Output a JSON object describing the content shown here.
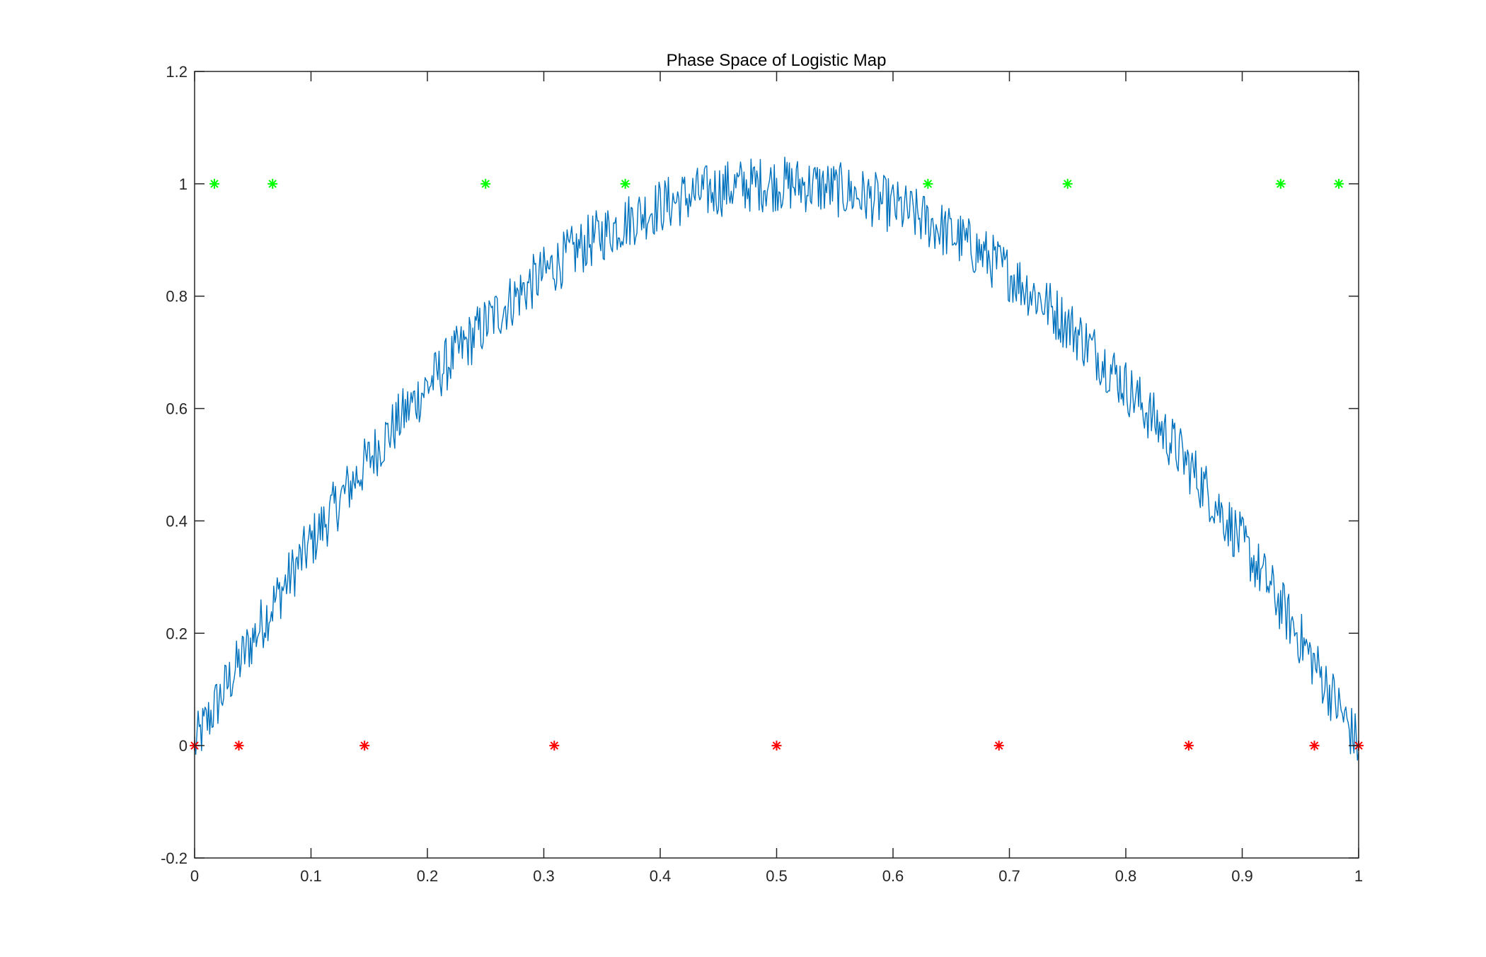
{
  "chart_data": {
    "type": "scatter",
    "title": "Phase Space of Logistic Map",
    "xlabel": "",
    "ylabel": "",
    "xlim": [
      0,
      1
    ],
    "ylim": [
      -0.2,
      1.2
    ],
    "xticks": [
      "0",
      "0.1",
      "0.2",
      "0.3",
      "0.4",
      "0.5",
      "0.6",
      "0.7",
      "0.8",
      "0.9",
      "1"
    ],
    "yticks": [
      "-0.2",
      "0",
      "0.2",
      "0.4",
      "0.6",
      "0.8",
      "1",
      "1.2"
    ],
    "grid": false,
    "legend": "none",
    "series": [
      {
        "style": "line",
        "color": "#0072BD",
        "underlying_function": "4*x*(1-x) with additive noise",
        "noise_amplitude": 0.05,
        "x_range": [
          0,
          1
        ],
        "sample_count": 1000
      },
      {
        "style": "markers",
        "marker": "asterisk",
        "color": "#00FF00",
        "points": [
          {
            "x": 0.017,
            "y": 1
          },
          {
            "x": 0.067,
            "y": 1
          },
          {
            "x": 0.25,
            "y": 1
          },
          {
            "x": 0.37,
            "y": 1
          },
          {
            "x": 0.63,
            "y": 1
          },
          {
            "x": 0.75,
            "y": 1
          },
          {
            "x": 0.933,
            "y": 1
          },
          {
            "x": 0.983,
            "y": 1
          }
        ]
      },
      {
        "style": "markers",
        "marker": "asterisk",
        "color": "#FF0000",
        "points": [
          {
            "x": 0,
            "y": 0
          },
          {
            "x": 0.038,
            "y": 0
          },
          {
            "x": 0.146,
            "y": 0
          },
          {
            "x": 0.309,
            "y": 0
          },
          {
            "x": 0.5,
            "y": 0
          },
          {
            "x": 0.691,
            "y": 0
          },
          {
            "x": 0.854,
            "y": 0
          },
          {
            "x": 0.962,
            "y": 0
          },
          {
            "x": 1,
            "y": 0
          }
        ]
      }
    ]
  }
}
